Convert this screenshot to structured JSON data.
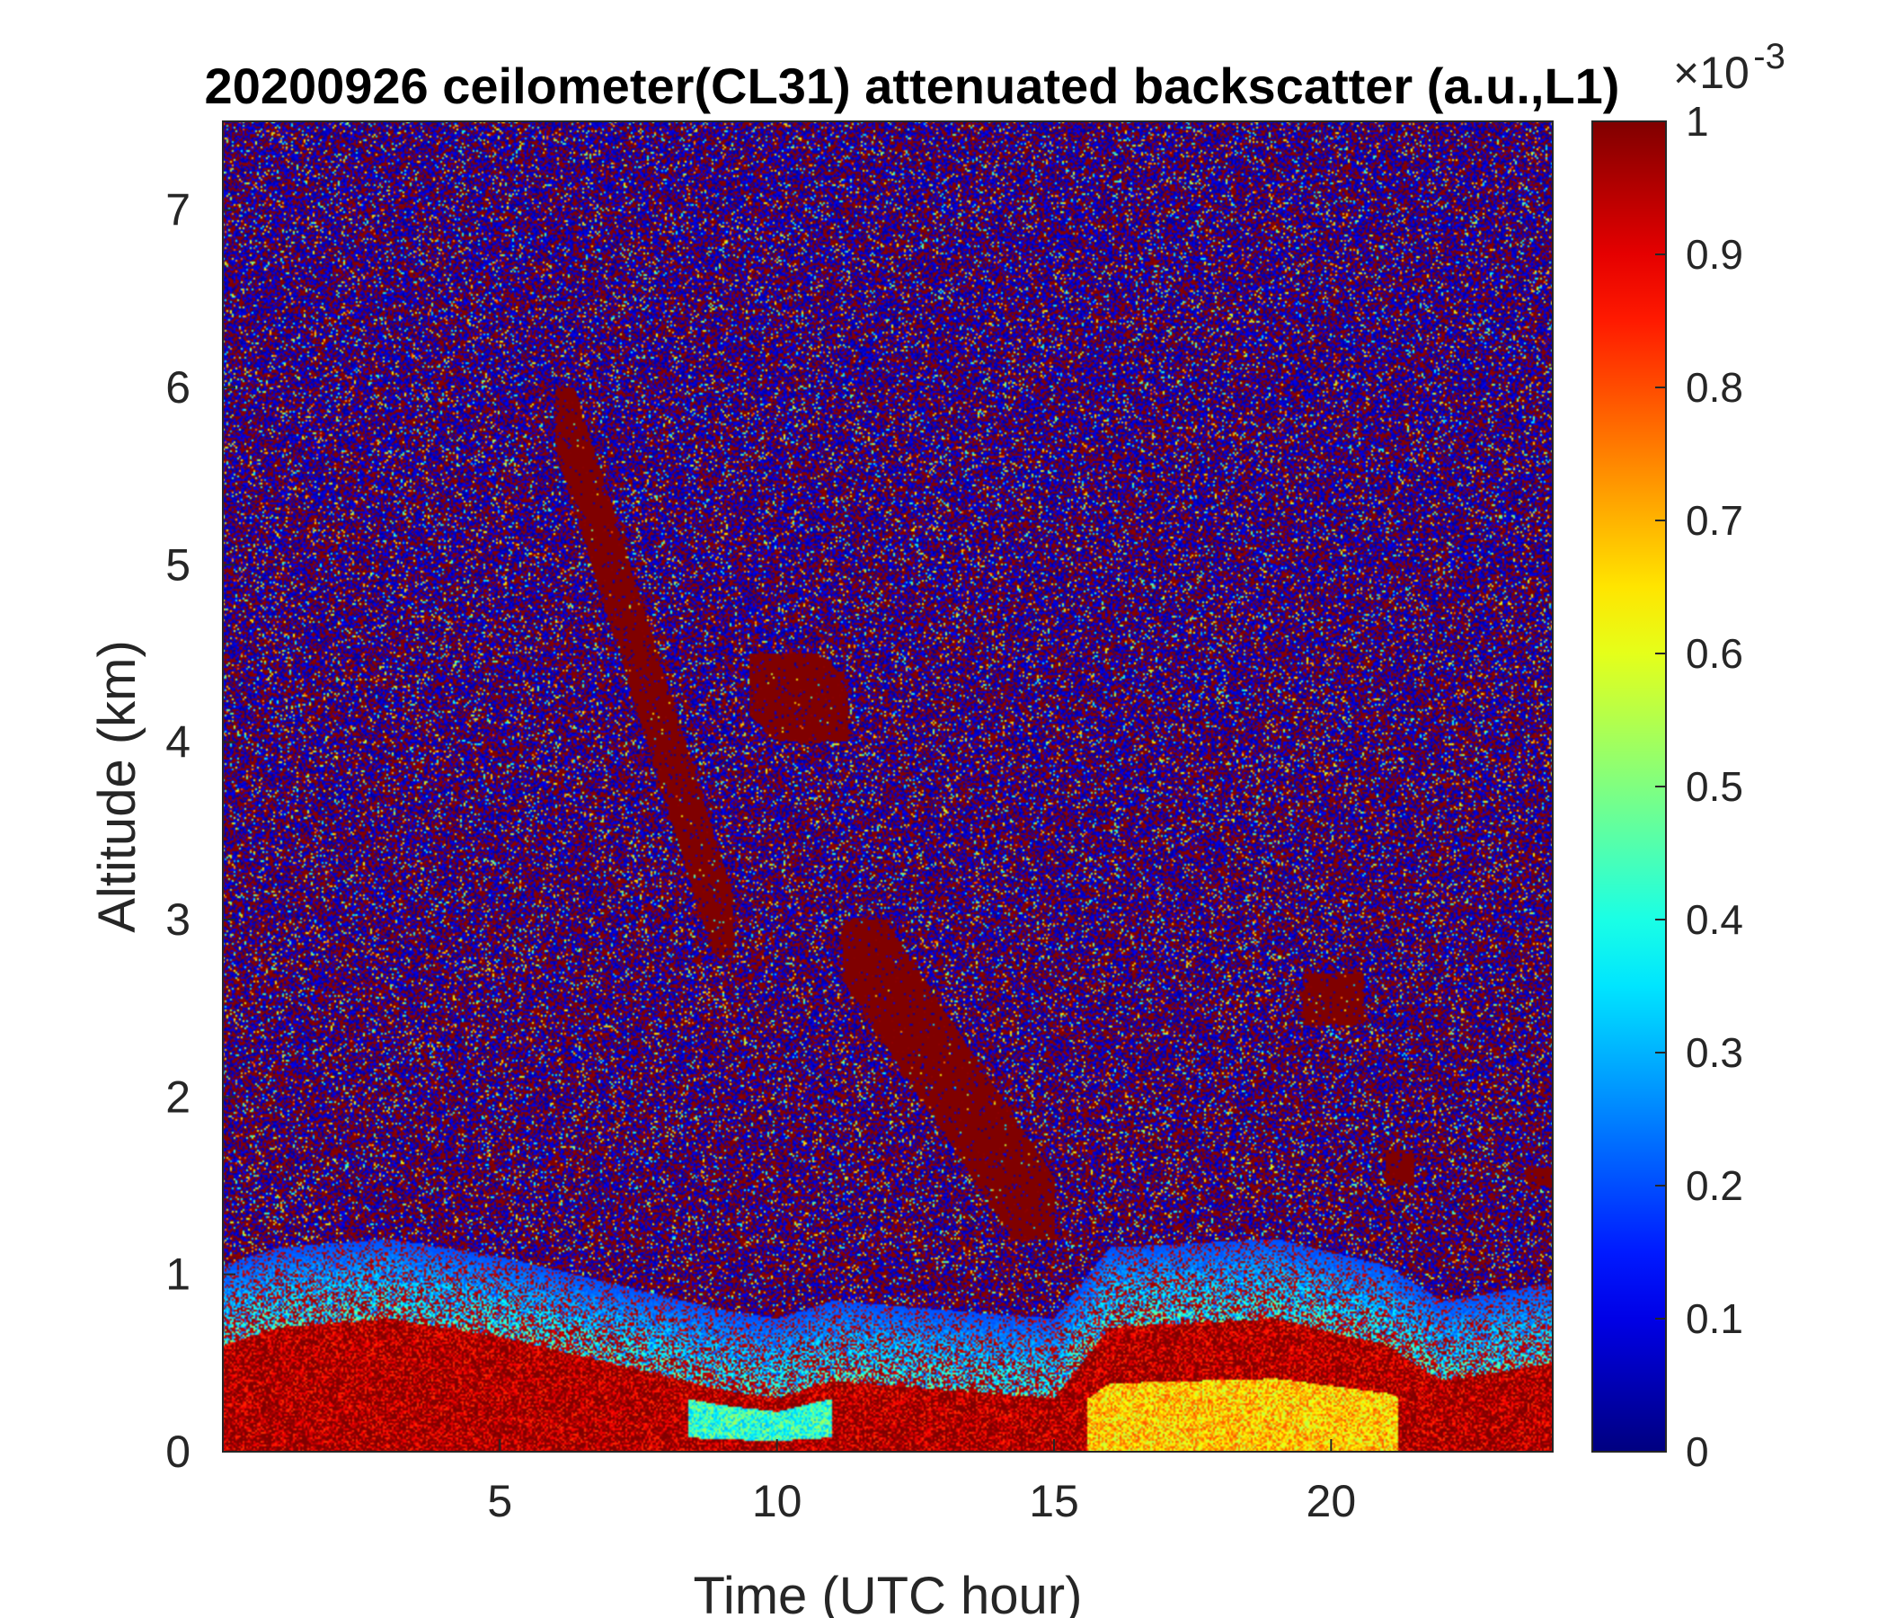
{
  "chart_data": {
    "type": "heatmap",
    "title": "20200926 ceilometer(CL31) attenuated backscatter (a.u.,L1)",
    "xlabel": "Time (UTC hour)",
    "ylabel": "Altitude (km)",
    "xlim": [
      0,
      24
    ],
    "ylim": [
      0,
      7.5
    ],
    "xticks": [
      5,
      10,
      15,
      20
    ],
    "yticks": [
      0,
      1,
      2,
      3,
      4,
      5,
      6,
      7
    ],
    "colormap": "jet",
    "colorbar": {
      "range": [
        0,
        1
      ],
      "ticks": [
        0,
        0.1,
        0.2,
        0.3,
        0.4,
        0.5,
        0.6,
        0.7,
        0.8,
        0.9,
        1
      ],
      "multiplier_base": "×10",
      "multiplier_exponent": "-3"
    },
    "colors": {
      "high": "#800000",
      "low": "#00008f",
      "mid": "#00ffff"
    },
    "features": {
      "boundary_layer_top_km": [
        [
          0,
          0.6
        ],
        [
          1,
          0.7
        ],
        [
          3,
          0.75
        ],
        [
          5,
          0.65
        ],
        [
          7,
          0.5
        ],
        [
          9,
          0.35
        ],
        [
          10,
          0.3
        ],
        [
          11,
          0.4
        ],
        [
          13,
          0.35
        ],
        [
          15,
          0.3
        ],
        [
          16,
          0.7
        ],
        [
          19,
          0.75
        ],
        [
          21,
          0.6
        ],
        [
          22,
          0.4
        ],
        [
          24,
          0.5
        ]
      ],
      "plumes": [
        {
          "t0": 6,
          "t1": 9.2,
          "z_top": 6.0,
          "z_bottom": 2.8
        },
        {
          "t0": 9.5,
          "t1": 11.3,
          "z_top": 4.5,
          "z_bottom": 4.0
        },
        {
          "t0": 11.2,
          "t1": 15,
          "z_top": 3.0,
          "z_bottom": 1.2
        },
        {
          "t0": 19.5,
          "t1": 20.6,
          "z_top": 2.7,
          "z_bottom": 2.4
        },
        {
          "t0": 21,
          "t1": 21.5,
          "z_top": 1.7,
          "z_bottom": 1.5
        },
        {
          "t0": 23.5,
          "t1": 24,
          "z_top": 1.6,
          "z_bottom": 1.5
        }
      ]
    }
  }
}
